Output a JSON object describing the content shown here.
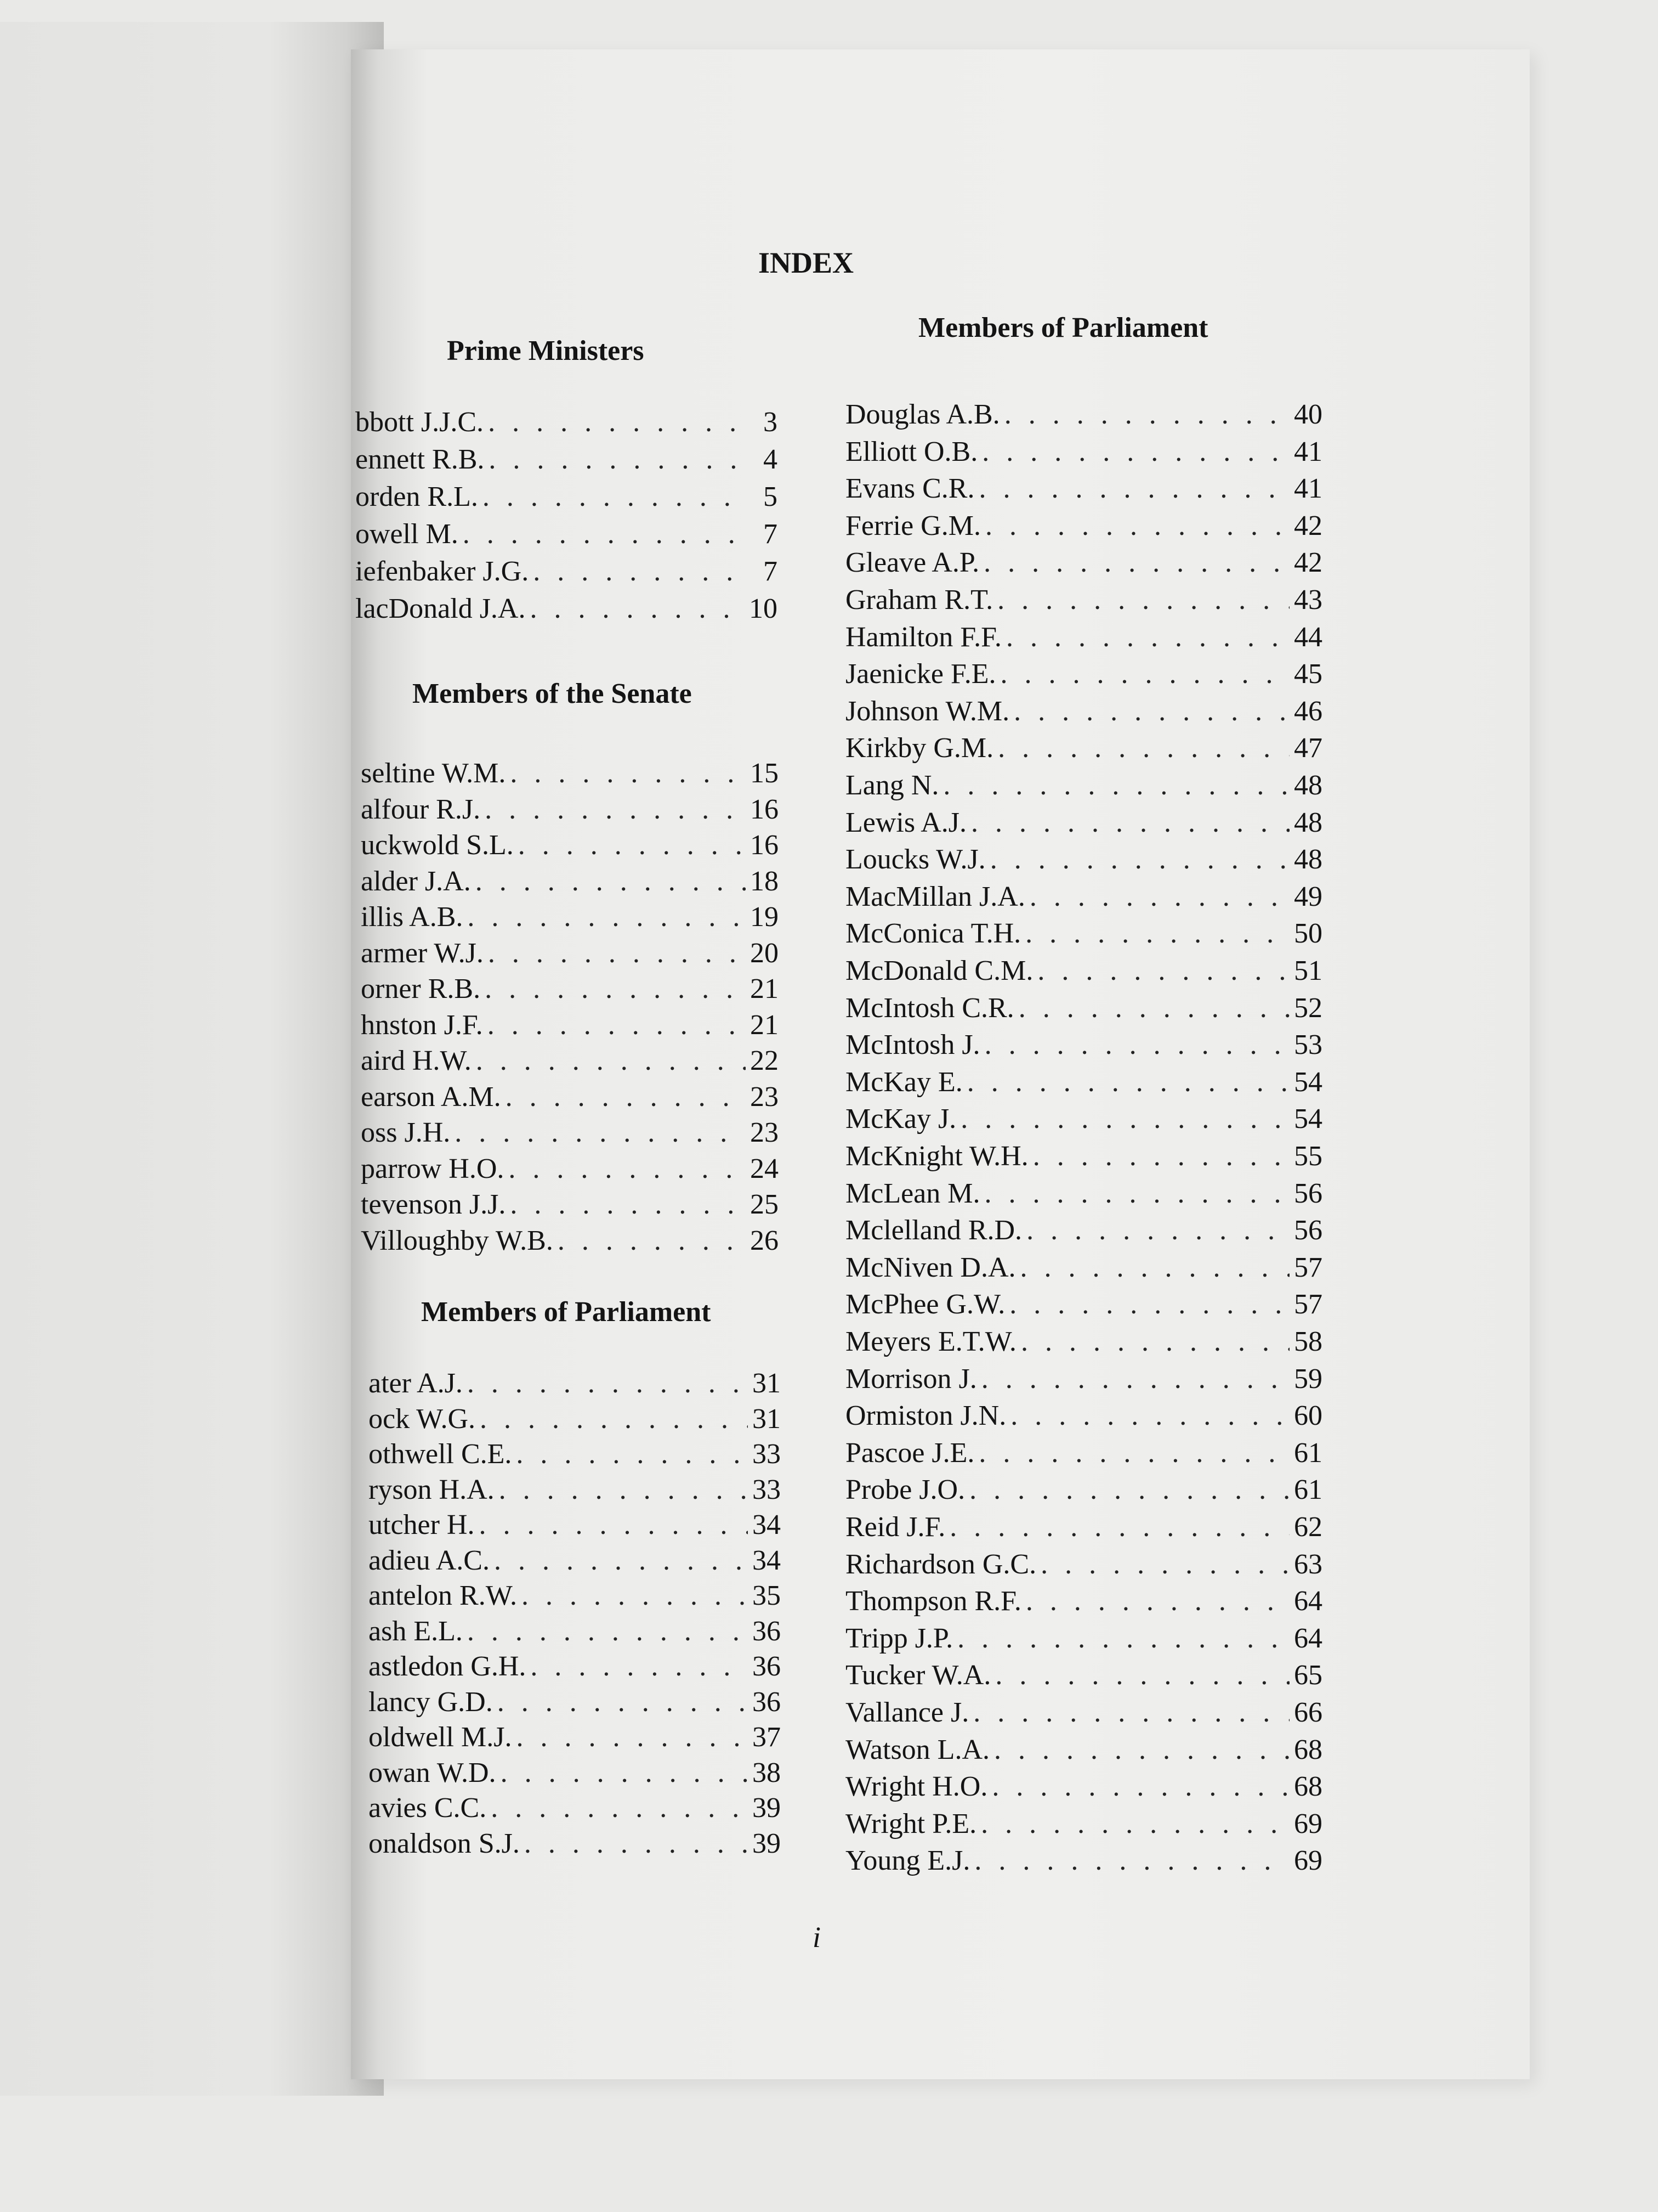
{
  "title": "INDEX",
  "page_number": "i",
  "left_column": {
    "prime_ministers": {
      "heading": "Prime Ministers",
      "entries": [
        {
          "name": "bbott J.J.C.",
          "page": "3"
        },
        {
          "name": "ennett R.B.",
          "page": "4"
        },
        {
          "name": "orden R.L.",
          "page": "5"
        },
        {
          "name": "owell M.",
          "page": "7"
        },
        {
          "name": "iefenbaker J.G.",
          "page": "7"
        },
        {
          "name": "lacDonald J.A.",
          "page": "10"
        }
      ]
    },
    "senate": {
      "heading": "Members of the Senate",
      "entries": [
        {
          "name": "seltine W.M.",
          "page": "15"
        },
        {
          "name": "alfour R.J.",
          "page": "16"
        },
        {
          "name": "uckwold S.L.",
          "page": "16"
        },
        {
          "name": "alder J.A.",
          "page": "18"
        },
        {
          "name": "illis A.B.",
          "page": "19"
        },
        {
          "name": "armer W.J.",
          "page": "20"
        },
        {
          "name": "orner R.B.",
          "page": "21"
        },
        {
          "name": "hnston J.F.",
          "page": "21"
        },
        {
          "name": "aird H.W.",
          "page": "22"
        },
        {
          "name": "earson A.M.",
          "page": "23"
        },
        {
          "name": "oss J.H.",
          "page": "23"
        },
        {
          "name": "parrow H.O.",
          "page": "24"
        },
        {
          "name": "tevenson J.J.",
          "page": "25"
        },
        {
          "name": "Villoughby W.B.",
          "page": "26"
        }
      ]
    },
    "parliament": {
      "heading": "Members of Parliament",
      "entries": [
        {
          "name": "ater A.J.",
          "page": "31"
        },
        {
          "name": "ock W.G.",
          "page": "31"
        },
        {
          "name": "othwell C.E.",
          "page": "33"
        },
        {
          "name": "ryson H.A.",
          "page": "33"
        },
        {
          "name": "utcher H.",
          "page": "34"
        },
        {
          "name": "adieu A.C.",
          "page": "34"
        },
        {
          "name": "antelon R.W.",
          "page": "35"
        },
        {
          "name": "ash E.L.",
          "page": "36"
        },
        {
          "name": "astledon G.H.",
          "page": "36"
        },
        {
          "name": "lancy G.D.",
          "page": "36"
        },
        {
          "name": "oldwell M.J.",
          "page": "37"
        },
        {
          "name": "owan W.D.",
          "page": "38"
        },
        {
          "name": "avies C.C.",
          "page": "39"
        },
        {
          "name": "onaldson S.J.",
          "page": "39"
        }
      ]
    }
  },
  "right_column": {
    "heading": "Members of Parliament",
    "entries": [
      {
        "name": "Douglas A.B.",
        "page": "40"
      },
      {
        "name": "Elliott O.B.",
        "page": "41"
      },
      {
        "name": "Evans C.R.",
        "page": "41"
      },
      {
        "name": "Ferrie G.M.",
        "page": "42"
      },
      {
        "name": "Gleave A.P.",
        "page": "42"
      },
      {
        "name": "Graham R.T.",
        "page": "43"
      },
      {
        "name": "Hamilton F.F.",
        "page": "44"
      },
      {
        "name": "Jaenicke F.E.",
        "page": "45"
      },
      {
        "name": "Johnson W.M.",
        "page": "46"
      },
      {
        "name": "Kirkby G.M.",
        "page": "47"
      },
      {
        "name": "Lang N.",
        "page": "48"
      },
      {
        "name": "Lewis A.J.",
        "page": "48"
      },
      {
        "name": "Loucks W.J.",
        "page": "48"
      },
      {
        "name": "MacMillan J.A.",
        "page": "49"
      },
      {
        "name": "McConica T.H.",
        "page": "50"
      },
      {
        "name": "McDonald C.M.",
        "page": "51"
      },
      {
        "name": "McIntosh C.R.",
        "page": "52"
      },
      {
        "name": "McIntosh J.",
        "page": "53"
      },
      {
        "name": "McKay E.",
        "page": "54"
      },
      {
        "name": "McKay J.",
        "page": "54"
      },
      {
        "name": "McKnight W.H.",
        "page": "55"
      },
      {
        "name": "McLean M.",
        "page": "56"
      },
      {
        "name": "Mclelland R.D.",
        "page": "56"
      },
      {
        "name": "McNiven D.A.",
        "page": "57"
      },
      {
        "name": "McPhee G.W.",
        "page": "57"
      },
      {
        "name": "Meyers E.T.W.",
        "page": "58"
      },
      {
        "name": "Morrison J.",
        "page": "59"
      },
      {
        "name": "Ormiston J.N.",
        "page": "60"
      },
      {
        "name": "Pascoe J.E.",
        "page": "61"
      },
      {
        "name": "Probe J.O.",
        "page": "61"
      },
      {
        "name": "Reid J.F.",
        "page": "62"
      },
      {
        "name": "Richardson G.C.",
        "page": "63"
      },
      {
        "name": "Thompson R.F.",
        "page": "64"
      },
      {
        "name": "Tripp J.P.",
        "page": "64"
      },
      {
        "name": "Tucker W.A.",
        "page": "65"
      },
      {
        "name": "Vallance J.",
        "page": "66"
      },
      {
        "name": "Watson L.A.",
        "page": "68"
      },
      {
        "name": "Wright H.O.",
        "page": "68"
      },
      {
        "name": "Wright P.E.",
        "page": "69"
      },
      {
        "name": "Young E.J.",
        "page": "69"
      }
    ]
  }
}
